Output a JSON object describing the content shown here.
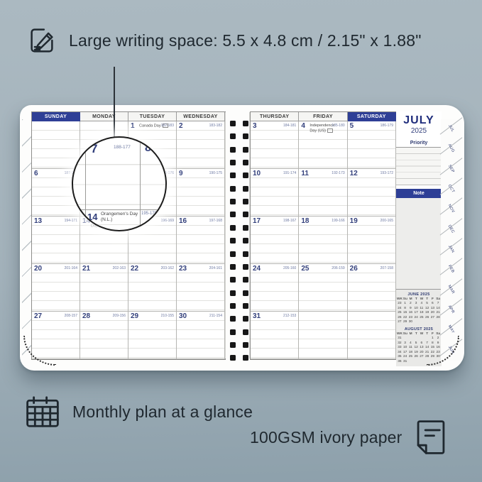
{
  "colors": {
    "background": "#a3b2bb",
    "accent_navy": "#2e3f96",
    "ink": "#1f282f",
    "page": "#ffffff"
  },
  "annotations": {
    "top_feature": "Large writing space: 5.5 x 4.8 cm / 2.15\" x 1.88\"",
    "bottom_left_feature": "Monthly plan at a glance",
    "bottom_right_feature": "100GSM ivory paper"
  },
  "icons": {
    "top_feature_icon": "pencil-note-icon",
    "bottom_left_icon": "calendar-grid-icon",
    "bottom_right_icon": "paper-sheet-icon"
  },
  "magnifier": {
    "day": "7",
    "code": "188-177",
    "adjacent_day": "8",
    "below_day": "14",
    "below_holiday": "Orangemen's Day (N.L.)",
    "below_code": "195-170"
  },
  "planner": {
    "month_title": "JULY",
    "year": "2025",
    "priority_label": "Priority",
    "note_label": "Note",
    "left_page": {
      "headers": [
        "SUNDAY",
        "MONDAY",
        "TUESDAY",
        "WEDNESDAY"
      ],
      "highlight": 0,
      "rows": [
        [
          {},
          {},
          {
            "d": "1",
            "holiday": "Canada Day",
            "flag": true,
            "code": "182-183"
          },
          {
            "d": "2",
            "code": "183-182"
          }
        ],
        [
          {
            "d": "6",
            "code": "187-178"
          },
          {
            "d": "7",
            "code": "188-177"
          },
          {
            "d": "8",
            "code": "189-176"
          },
          {
            "d": "9",
            "code": "190-175"
          }
        ],
        [
          {
            "d": "13",
            "code": "194-171"
          },
          {
            "d": "14",
            "holiday": "Orangemen's Day (N.L.)",
            "flag": true,
            "code": "195-170"
          },
          {
            "d": "15",
            "code": "196-169"
          },
          {
            "d": "16",
            "code": "197-168"
          }
        ],
        [
          {
            "d": "20",
            "code": "201-164"
          },
          {
            "d": "21",
            "code": "202-163"
          },
          {
            "d": "22",
            "code": "203-162"
          },
          {
            "d": "23",
            "code": "204-161"
          }
        ],
        [
          {
            "d": "27",
            "code": "208-157"
          },
          {
            "d": "28",
            "code": "209-156"
          },
          {
            "d": "29",
            "code": "210-155"
          },
          {
            "d": "30",
            "code": "211-154"
          }
        ]
      ]
    },
    "right_page": {
      "headers": [
        "THURSDAY",
        "FRIDAY",
        "SATURDAY"
      ],
      "highlight": 2,
      "rows": [
        [
          {
            "d": "3",
            "code": "184-181"
          },
          {
            "d": "4",
            "holiday": "Independence Day (US)",
            "flag": true,
            "code": "185-180"
          },
          {
            "d": "5",
            "code": "186-179"
          }
        ],
        [
          {
            "d": "10",
            "code": "191-174"
          },
          {
            "d": "11",
            "code": "192-173"
          },
          {
            "d": "12",
            "code": "193-172"
          }
        ],
        [
          {
            "d": "17",
            "code": "198-167"
          },
          {
            "d": "18",
            "code": "199-166"
          },
          {
            "d": "19",
            "code": "200-165"
          }
        ],
        [
          {
            "d": "24",
            "code": "205-160"
          },
          {
            "d": "25",
            "code": "206-159"
          },
          {
            "d": "26",
            "code": "207-158"
          }
        ],
        [
          {
            "d": "31",
            "code": "212-153"
          },
          {},
          {}
        ]
      ]
    },
    "mini_calendars": [
      {
        "title": "JUNE 2025",
        "dow": [
          "WK",
          "Su",
          "M",
          "T",
          "W",
          "T",
          "F",
          "Sa"
        ],
        "weeks": [
          [
            "23",
            "1",
            "2",
            "3",
            "4",
            "5",
            "6",
            "7"
          ],
          [
            "24",
            "8",
            "9",
            "10",
            "11",
            "12",
            "13",
            "14"
          ],
          [
            "25",
            "15",
            "16",
            "17",
            "18",
            "19",
            "20",
            "21"
          ],
          [
            "26",
            "22",
            "23",
            "24",
            "25",
            "26",
            "27",
            "28"
          ],
          [
            "27",
            "29",
            "30",
            "",
            "",
            "",
            "",
            ""
          ]
        ]
      },
      {
        "title": "AUGUST 2025",
        "dow": [
          "WK",
          "Su",
          "M",
          "T",
          "W",
          "T",
          "F",
          "Sa"
        ],
        "weeks": [
          [
            "31",
            "",
            "",
            "",
            "",
            "",
            "1",
            "2"
          ],
          [
            "32",
            "3",
            "4",
            "5",
            "6",
            "7",
            "8",
            "9"
          ],
          [
            "33",
            "10",
            "11",
            "12",
            "13",
            "14",
            "15",
            "16"
          ],
          [
            "34",
            "17",
            "18",
            "19",
            "20",
            "21",
            "22",
            "23"
          ],
          [
            "35",
            "24",
            "25",
            "26",
            "27",
            "28",
            "29",
            "30"
          ],
          [
            "36",
            "31",
            "",
            "",
            "",
            "",
            "",
            ""
          ]
        ]
      }
    ],
    "month_tabs": [
      "JUL",
      "AUG",
      "SEP",
      "OCT",
      "NOV",
      "DEC",
      "JAN",
      "FEB",
      "MAR",
      "APR",
      "MAY",
      "JUN"
    ]
  }
}
